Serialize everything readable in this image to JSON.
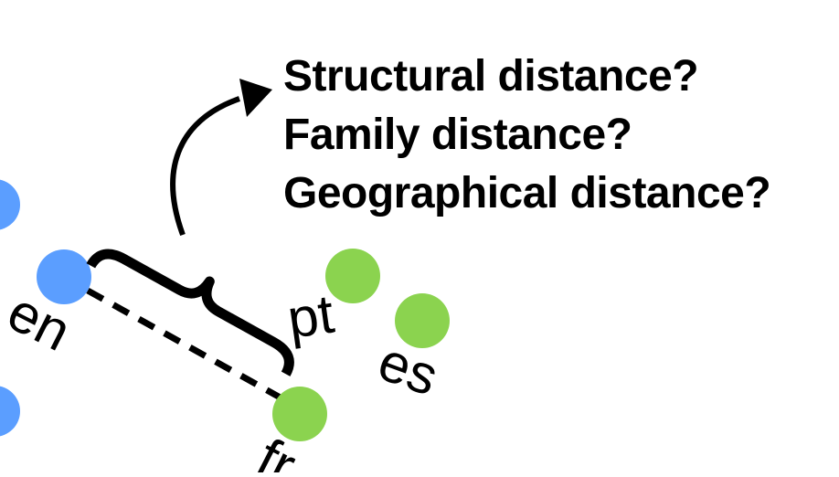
{
  "questions": [
    "Structural distance?",
    "Family distance?",
    "Geographical distance?"
  ],
  "languages": {
    "en": "en",
    "pt": "pt",
    "es": "es",
    "fr": "fr"
  },
  "colors": {
    "blue_node": "#5b9eff",
    "green_node": "#8bd34f",
    "ink": "#000000",
    "background": "#ffffff"
  },
  "icons": {
    "arrow": "curved-arrow-icon",
    "brace": "curly-brace-icon"
  }
}
